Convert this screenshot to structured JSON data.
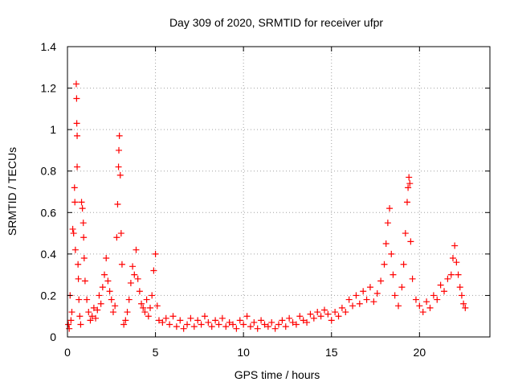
{
  "chart_data": {
    "type": "scatter",
    "title": "Day 309 of 2020, SRMTID for receiver ufpr",
    "xlabel": "GPS time / hours",
    "ylabel": "SRMTID / TECUs",
    "xlim": [
      0,
      24
    ],
    "ylim": [
      0,
      1.4
    ],
    "xticks": [
      0,
      5,
      10,
      15,
      20
    ],
    "xtick_labels": [
      "0",
      "5",
      "10",
      "15",
      "20"
    ],
    "yticks": [
      0,
      0.2,
      0.4,
      0.6,
      0.8,
      1,
      1.2,
      1.4
    ],
    "ytick_labels": [
      "0",
      "0.2",
      "0.4",
      "0.6",
      "0.8",
      "1",
      "1.2",
      "1.4"
    ],
    "grid": true,
    "marker": "+",
    "color": "#ff0000",
    "series": [
      {
        "name": "SRMTID",
        "points": [
          [
            0.05,
            0.06
          ],
          [
            0.1,
            0.04
          ],
          [
            0.15,
            0.2
          ],
          [
            0.2,
            0.08
          ],
          [
            0.25,
            0.12
          ],
          [
            0.3,
            0.52
          ],
          [
            0.35,
            0.5
          ],
          [
            0.4,
            0.72
          ],
          [
            0.42,
            0.65
          ],
          [
            0.45,
            0.42
          ],
          [
            0.5,
            1.22
          ],
          [
            0.52,
            1.15
          ],
          [
            0.53,
            1.03
          ],
          [
            0.55,
            0.97
          ],
          [
            0.55,
            0.82
          ],
          [
            0.6,
            0.35
          ],
          [
            0.62,
            0.28
          ],
          [
            0.65,
            0.18
          ],
          [
            0.7,
            0.1
          ],
          [
            0.75,
            0.06
          ],
          [
            0.8,
            0.65
          ],
          [
            0.85,
            0.62
          ],
          [
            0.9,
            0.55
          ],
          [
            0.92,
            0.48
          ],
          [
            0.95,
            0.38
          ],
          [
            1.0,
            0.27
          ],
          [
            1.1,
            0.18
          ],
          [
            1.2,
            0.12
          ],
          [
            1.3,
            0.08
          ],
          [
            1.4,
            0.1
          ],
          [
            1.5,
            0.14
          ],
          [
            1.6,
            0.09
          ],
          [
            1.7,
            0.13
          ],
          [
            1.8,
            0.2
          ],
          [
            1.9,
            0.16
          ],
          [
            2.0,
            0.24
          ],
          [
            2.1,
            0.3
          ],
          [
            2.2,
            0.38
          ],
          [
            2.3,
            0.27
          ],
          [
            2.4,
            0.22
          ],
          [
            2.5,
            0.18
          ],
          [
            2.6,
            0.12
          ],
          [
            2.7,
            0.15
          ],
          [
            2.8,
            0.48
          ],
          [
            2.85,
            0.64
          ],
          [
            2.9,
            0.82
          ],
          [
            2.92,
            0.9
          ],
          [
            2.95,
            0.97
          ],
          [
            3.0,
            0.78
          ],
          [
            3.05,
            0.5
          ],
          [
            3.1,
            0.35
          ],
          [
            3.2,
            0.06
          ],
          [
            3.3,
            0.08
          ],
          [
            3.4,
            0.12
          ],
          [
            3.5,
            0.18
          ],
          [
            3.6,
            0.26
          ],
          [
            3.7,
            0.34
          ],
          [
            3.8,
            0.3
          ],
          [
            3.9,
            0.42
          ],
          [
            4.0,
            0.28
          ],
          [
            4.1,
            0.22
          ],
          [
            4.2,
            0.16
          ],
          [
            4.3,
            0.14
          ],
          [
            4.4,
            0.12
          ],
          [
            4.5,
            0.18
          ],
          [
            4.6,
            0.1
          ],
          [
            4.7,
            0.14
          ],
          [
            4.8,
            0.2
          ],
          [
            4.9,
            0.32
          ],
          [
            5.0,
            0.4
          ],
          [
            5.1,
            0.15
          ],
          [
            5.2,
            0.08
          ],
          [
            5.4,
            0.07
          ],
          [
            5.6,
            0.09
          ],
          [
            5.8,
            0.06
          ],
          [
            6.0,
            0.1
          ],
          [
            6.2,
            0.05
          ],
          [
            6.4,
            0.08
          ],
          [
            6.6,
            0.04
          ],
          [
            6.8,
            0.06
          ],
          [
            7.0,
            0.09
          ],
          [
            7.2,
            0.05
          ],
          [
            7.4,
            0.08
          ],
          [
            7.6,
            0.06
          ],
          [
            7.8,
            0.1
          ],
          [
            8.0,
            0.07
          ],
          [
            8.2,
            0.05
          ],
          [
            8.4,
            0.08
          ],
          [
            8.6,
            0.06
          ],
          [
            8.8,
            0.09
          ],
          [
            9.0,
            0.05
          ],
          [
            9.2,
            0.07
          ],
          [
            9.4,
            0.06
          ],
          [
            9.6,
            0.04
          ],
          [
            9.8,
            0.08
          ],
          [
            10.0,
            0.06
          ],
          [
            10.2,
            0.1
          ],
          [
            10.4,
            0.05
          ],
          [
            10.6,
            0.07
          ],
          [
            10.8,
            0.04
          ],
          [
            11.0,
            0.08
          ],
          [
            11.2,
            0.06
          ],
          [
            11.4,
            0.05
          ],
          [
            11.6,
            0.07
          ],
          [
            11.8,
            0.04
          ],
          [
            12.0,
            0.06
          ],
          [
            12.2,
            0.08
          ],
          [
            12.4,
            0.05
          ],
          [
            12.6,
            0.09
          ],
          [
            12.8,
            0.07
          ],
          [
            13.0,
            0.06
          ],
          [
            13.2,
            0.1
          ],
          [
            13.4,
            0.08
          ],
          [
            13.6,
            0.07
          ],
          [
            13.8,
            0.11
          ],
          [
            14.0,
            0.09
          ],
          [
            14.2,
            0.12
          ],
          [
            14.4,
            0.1
          ],
          [
            14.6,
            0.13
          ],
          [
            14.8,
            0.11
          ],
          [
            15.0,
            0.08
          ],
          [
            15.2,
            0.12
          ],
          [
            15.4,
            0.1
          ],
          [
            15.6,
            0.14
          ],
          [
            15.8,
            0.12
          ],
          [
            16.0,
            0.18
          ],
          [
            16.2,
            0.15
          ],
          [
            16.4,
            0.2
          ],
          [
            16.6,
            0.16
          ],
          [
            16.8,
            0.22
          ],
          [
            17.0,
            0.18
          ],
          [
            17.2,
            0.24
          ],
          [
            17.4,
            0.17
          ],
          [
            17.6,
            0.21
          ],
          [
            17.8,
            0.27
          ],
          [
            18.0,
            0.35
          ],
          [
            18.1,
            0.45
          ],
          [
            18.2,
            0.55
          ],
          [
            18.3,
            0.62
          ],
          [
            18.4,
            0.4
          ],
          [
            18.5,
            0.3
          ],
          [
            18.6,
            0.2
          ],
          [
            18.8,
            0.15
          ],
          [
            19.0,
            0.24
          ],
          [
            19.1,
            0.35
          ],
          [
            19.2,
            0.5
          ],
          [
            19.3,
            0.65
          ],
          [
            19.35,
            0.72
          ],
          [
            19.4,
            0.77
          ],
          [
            19.45,
            0.74
          ],
          [
            19.5,
            0.46
          ],
          [
            19.6,
            0.28
          ],
          [
            19.8,
            0.18
          ],
          [
            20.0,
            0.15
          ],
          [
            20.2,
            0.12
          ],
          [
            20.4,
            0.17
          ],
          [
            20.6,
            0.14
          ],
          [
            20.8,
            0.2
          ],
          [
            21.0,
            0.18
          ],
          [
            21.2,
            0.25
          ],
          [
            21.4,
            0.22
          ],
          [
            21.6,
            0.28
          ],
          [
            21.8,
            0.3
          ],
          [
            21.9,
            0.38
          ],
          [
            22.0,
            0.44
          ],
          [
            22.1,
            0.36
          ],
          [
            22.2,
            0.3
          ],
          [
            22.3,
            0.24
          ],
          [
            22.4,
            0.2
          ],
          [
            22.5,
            0.16
          ],
          [
            22.6,
            0.14
          ]
        ]
      }
    ]
  }
}
